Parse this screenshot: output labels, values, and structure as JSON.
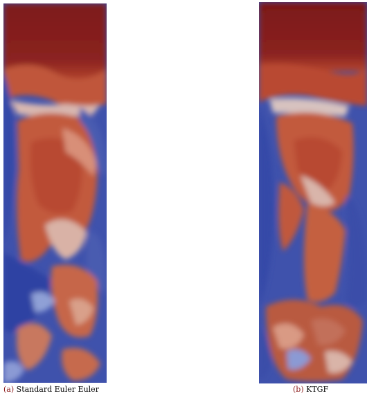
{
  "figures": [
    {
      "label": "(a)",
      "caption": "Standard Euler Euler"
    },
    {
      "label": "(b)",
      "caption": "KTGF"
    }
  ],
  "colors": {
    "high": "#7d1a1a",
    "upper": "#b8472e",
    "mid_warm": "#d98a70",
    "neutral": "#c9c7d2",
    "mid_cool": "#8f9ed8",
    "low": "#3a4ca8",
    "background": "#ffffff"
  }
}
